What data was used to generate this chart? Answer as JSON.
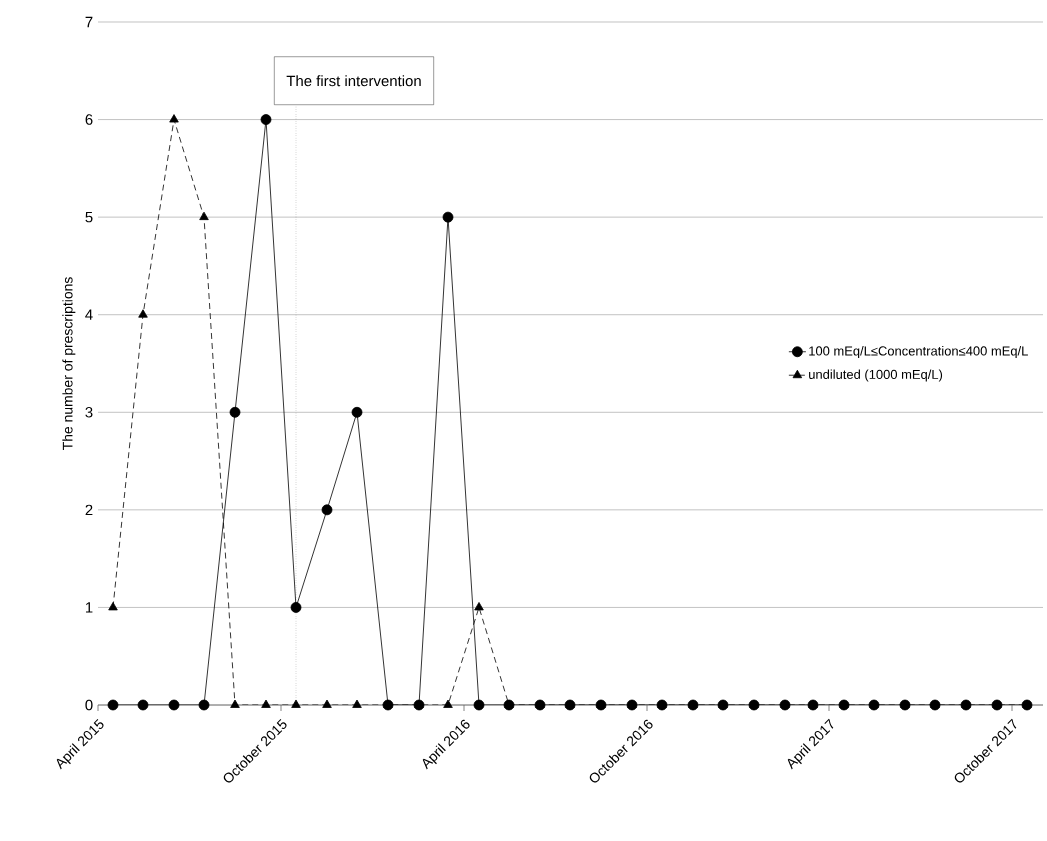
{
  "chart_data": {
    "type": "line",
    "ylabel": "The number of prescriptions",
    "x": [
      "2015-04-16",
      "2015-05-16",
      "2015-06-16",
      "2015-07-16",
      "2015-08-16",
      "2015-09-16",
      "2015-10-16",
      "2015-11-16",
      "2015-12-16",
      "2016-01-16",
      "2016-02-16",
      "2016-03-16",
      "2016-04-16",
      "2016-05-16",
      "2016-06-16",
      "2016-07-16",
      "2016-08-16",
      "2016-09-16",
      "2016-10-16",
      "2016-11-16",
      "2016-12-16",
      "2017-01-16",
      "2017-02-16",
      "2017-03-16",
      "2017-04-16",
      "2017-05-16",
      "2017-06-16",
      "2017-07-16",
      "2017-08-16",
      "2017-09-16",
      "2017-10-16"
    ],
    "series": [
      {
        "name": "100 mEq/L≤Concentration≤400 mEq/L",
        "color": "#000000",
        "marker": "circle",
        "line_style": "solid",
        "values": [
          0,
          0,
          0,
          0,
          3,
          6,
          1,
          2,
          3,
          0,
          0,
          5,
          0,
          0,
          0,
          0,
          0,
          0,
          0,
          0,
          0,
          0,
          0,
          0,
          0,
          0,
          0,
          0,
          0,
          0,
          0
        ]
      },
      {
        "name": "undiluted (1000 mEq/L)",
        "color": "#000000",
        "marker": "triangle",
        "line_style": "dashed",
        "values": [
          1,
          4,
          6,
          5,
          0,
          0,
          0,
          0,
          0,
          0,
          0,
          0,
          1,
          0,
          0,
          0,
          0,
          0,
          0,
          0,
          0,
          0,
          0,
          0,
          0,
          0,
          0,
          0,
          0,
          0,
          0
        ]
      }
    ],
    "xlim": [
      "2015-04",
      "2017-11"
    ],
    "xticks": [
      {
        "value": "2015-04",
        "label": "April 2015"
      },
      {
        "value": "2015-10",
        "label": "October 2015"
      },
      {
        "value": "2016-04",
        "label": "April 2016"
      },
      {
        "value": "2016-10",
        "label": "October 2016"
      },
      {
        "value": "2017-04",
        "label": "April 2017"
      },
      {
        "value": "2017-10",
        "label": "October 2017"
      }
    ],
    "ylim": [
      0,
      7
    ],
    "yticks": [
      0,
      1,
      2,
      3,
      4,
      5,
      6,
      7
    ],
    "ref_lines": [
      {
        "axis": "x",
        "value": "2015-10-16",
        "label": "The first intervention",
        "line_style": "dotted",
        "color": "#000000"
      }
    ],
    "grid": "y",
    "legend": "right"
  }
}
